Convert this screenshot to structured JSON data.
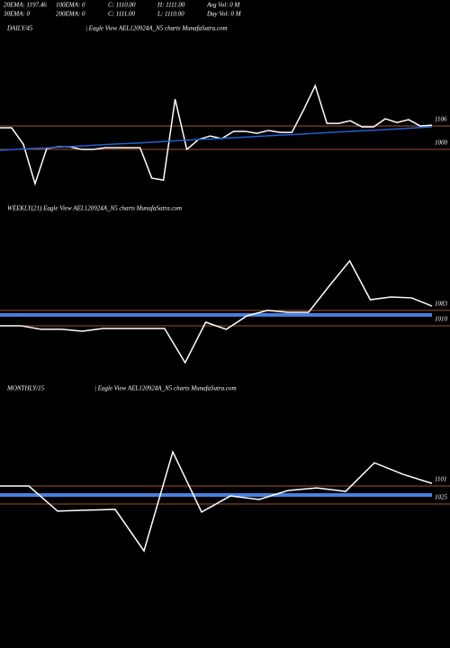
{
  "header": {
    "row1": [
      "20EMA: 1197.46",
      "100EMA: 0",
      "C: 1110.00",
      "H: 1111.00",
      "Avg Vol: 0  M"
    ],
    "row2": [
      "30EMA: 0",
      "200EMA: 0",
      "C: 1111.00",
      "L: 1110.00",
      "Day Vol: 0  M"
    ]
  },
  "chart_data": [
    {
      "type": "line",
      "title": "DAILY/45",
      "subtitle": "| Eagle  View  AEL120924A_N5 charts MunafaSutra.com",
      "categories": [
        null,
        null,
        null,
        null,
        null,
        null,
        null,
        null,
        null,
        null,
        null,
        null,
        null,
        null,
        null,
        null,
        null,
        null,
        null,
        null,
        null,
        null,
        null,
        null,
        null,
        null,
        null,
        null,
        null,
        null,
        null,
        null,
        null,
        null,
        null,
        null,
        null,
        null
      ],
      "series": [
        {
          "color": "#ffffff",
          "width": 1.5,
          "values": [
            1098,
            1098,
            1024,
            845,
            1004,
            1012,
            1012,
            1000,
            1000,
            1008,
            1008,
            1008,
            1008,
            870,
            861,
            1228,
            1000,
            1045,
            1061,
            1049,
            1082,
            1082,
            1073,
            1086,
            1077,
            1077,
            1179,
            1289,
            1118,
            1118,
            1130,
            1102,
            1102,
            1139,
            1122,
            1135,
            1106,
            1110
          ]
        },
        {
          "color": "#2060d0",
          "width": 1.5,
          "values": [
            996,
            999,
            1002,
            1005,
            1007,
            1010,
            1013,
            1016,
            1019,
            1022,
            1025,
            1027,
            1030,
            1033,
            1036,
            1039,
            1042,
            1045,
            1047,
            1050,
            1053,
            1056,
            1059,
            1062,
            1065,
            1067,
            1070,
            1073,
            1076,
            1079,
            1082,
            1085,
            1087,
            1090,
            1093,
            1096,
            1099,
            1102
          ]
        }
      ],
      "hlines": [
        1106,
        1000
      ],
      "hline_color": "#a0522d",
      "ylim": [
        780,
        1514
      ]
    },
    {
      "type": "line",
      "title": "WEEKLY(21) Eagle  View  AEL120924A_N5 charts MunafaSutra.com",
      "categories": [
        null,
        null,
        null,
        null,
        null,
        null,
        null,
        null,
        null,
        null,
        null,
        null,
        null,
        null,
        null,
        null,
        null,
        null,
        null,
        null,
        null,
        null
      ],
      "series": [
        {
          "color": "#4a7fe0",
          "width": 4,
          "values": [
            1062,
            1062,
            1062,
            1062,
            1062,
            1062,
            1062,
            1062,
            1062,
            1062,
            1062,
            1062,
            1062,
            1062,
            1062,
            1062,
            1062,
            1062,
            1062,
            1062,
            1062,
            1062
          ]
        },
        {
          "color": "#ffffff",
          "width": 1.5,
          "values": [
            1010,
            1010,
            993,
            993,
            984,
            997,
            997,
            997,
            997,
            834,
            1027,
            993,
            1057,
            1083,
            1074,
            1074,
            1199,
            1319,
            1134,
            1147,
            1143,
            1104
          ]
        }
      ],
      "hlines": [
        1083,
        1010
      ],
      "hline_color": "#a0522d",
      "ylim": [
        761,
        1533
      ]
    },
    {
      "type": "line",
      "title": "MONTHLY/15",
      "subtitle": "| Eagle  View  AEL120924A_N5 charts MunafaSutra.com",
      "categories": [
        null,
        null,
        null,
        null,
        null,
        null,
        null,
        null,
        null,
        null,
        null,
        null,
        null,
        null,
        null,
        null
      ],
      "series": [
        {
          "color": "#4a7fe0",
          "width": 4,
          "values": [
            1063,
            1063,
            1063,
            1063,
            1063,
            1063,
            1063,
            1063,
            1063,
            1063,
            1063,
            1063,
            1063,
            1063,
            1063,
            1063
          ]
        },
        {
          "color": "#ffffff",
          "width": 1.5,
          "values": [
            1101,
            1101,
            995,
            999,
            1002,
            827,
            1245,
            991,
            1059,
            1044,
            1082,
            1093,
            1078,
            1199,
            1150,
            1112
          ]
        }
      ],
      "hlines": [
        1101,
        1025
      ],
      "hline_color": "#a0522d",
      "ylim": [
        797,
        1481
      ]
    }
  ]
}
